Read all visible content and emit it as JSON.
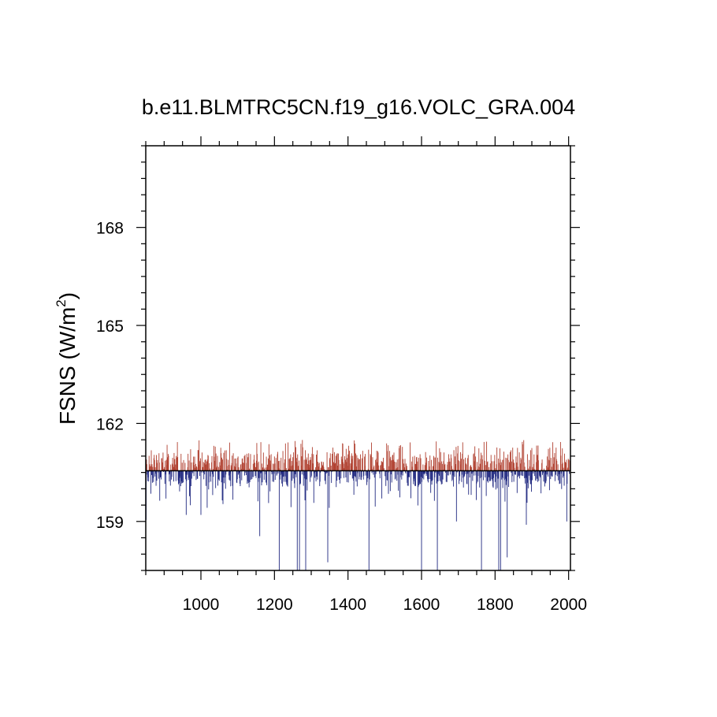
{
  "chart_data": {
    "type": "bar",
    "title": "b.e11.BLMTRC5CN.f19_g16.VOLC_GRA.004",
    "ylabel": {
      "prefix": "FSNS (W/m",
      "superscript": "2",
      "suffix": ")"
    },
    "xlabel": "",
    "xlim": [
      850,
      2005
    ],
    "ylim": [
      157.5,
      170.5
    ],
    "x_ticks": [
      1000,
      1200,
      1400,
      1600,
      1800,
      2000
    ],
    "x_tick_labels": [
      "1000",
      "1200",
      "1400",
      "1600",
      "1800",
      "2000"
    ],
    "y_ticks": [
      159,
      162,
      165,
      168
    ],
    "y_tick_labels": [
      "159",
      "162",
      "165",
      "168"
    ],
    "reference_value": 160.55,
    "colors": {
      "above": "#b04030",
      "below": "#202880",
      "axis": "#000000"
    },
    "baseline_range": [
      160.0,
      161.05
    ],
    "events": [
      {
        "x": 851,
        "y": 159.05
      },
      {
        "x": 905,
        "y": 159.7
      },
      {
        "x": 960,
        "y": 159.2
      },
      {
        "x": 1000,
        "y": 159.2
      },
      {
        "x": 1160,
        "y": 158.55
      },
      {
        "x": 1213,
        "y": 157.5
      },
      {
        "x": 1262,
        "y": 157.5
      },
      {
        "x": 1268,
        "y": 157.5
      },
      {
        "x": 1285,
        "y": 157.5
      },
      {
        "x": 1345,
        "y": 157.75
      },
      {
        "x": 1457,
        "y": 157.5
      },
      {
        "x": 1600,
        "y": 157.5
      },
      {
        "x": 1643,
        "y": 157.5
      },
      {
        "x": 1695,
        "y": 159.0
      },
      {
        "x": 1763,
        "y": 157.5
      },
      {
        "x": 1810,
        "y": 157.5
      },
      {
        "x": 1815,
        "y": 157.5
      },
      {
        "x": 1833,
        "y": 157.9
      },
      {
        "x": 1885,
        "y": 158.9
      },
      {
        "x": 1995,
        "y": 159.0
      }
    ]
  }
}
